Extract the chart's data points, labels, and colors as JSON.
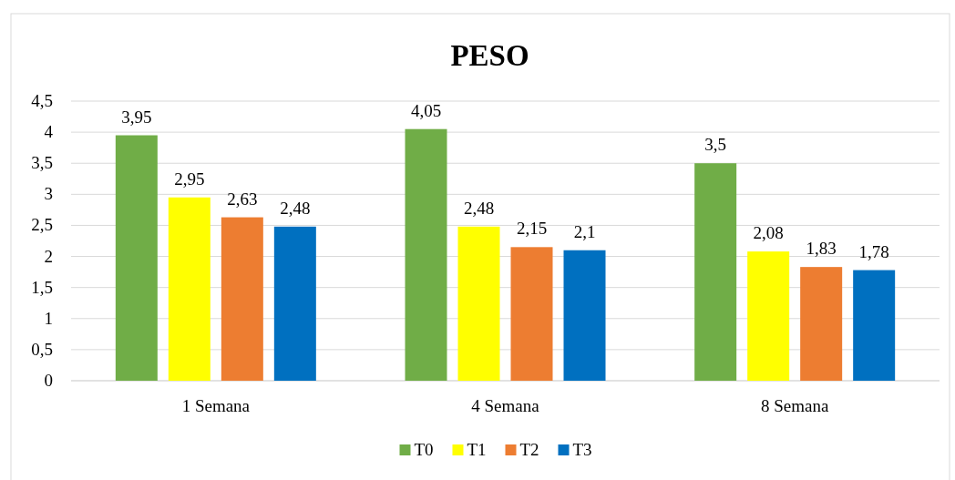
{
  "chart_data": {
    "type": "bar",
    "title": "PESO",
    "categories": [
      "1 Semana",
      "4 Semana",
      "8 Semana"
    ],
    "series": [
      {
        "name": "T0",
        "color": "#70ad47",
        "values": [
          3.95,
          4.05,
          3.5
        ],
        "value_labels": [
          "3,95",
          "4,05",
          "3,5"
        ]
      },
      {
        "name": "T1",
        "color": "#ffff00",
        "values": [
          2.95,
          2.48,
          2.08
        ],
        "value_labels": [
          "2,95",
          "2,48",
          "2,08"
        ]
      },
      {
        "name": "T2",
        "color": "#ed7d31",
        "values": [
          2.63,
          2.15,
          1.83
        ],
        "value_labels": [
          "2,63",
          "2,15",
          "1,83"
        ]
      },
      {
        "name": "T3",
        "color": "#0070c0",
        "values": [
          2.48,
          2.1,
          1.78
        ],
        "value_labels": [
          "2,48",
          "2,1",
          "1,78"
        ]
      }
    ],
    "ylim": [
      0,
      4.5
    ],
    "yticks": [
      0,
      {
        "value": 0.5,
        "label": "0,5"
      },
      1,
      {
        "value": 1.5,
        "label": "1,5"
      },
      2,
      {
        "value": 2.5,
        "label": "2,5"
      },
      3,
      {
        "value": 3.5,
        "label": "3,5"
      },
      4,
      {
        "value": 4.5,
        "label": "4,5"
      }
    ],
    "grid": "y",
    "legend": "bottom"
  }
}
